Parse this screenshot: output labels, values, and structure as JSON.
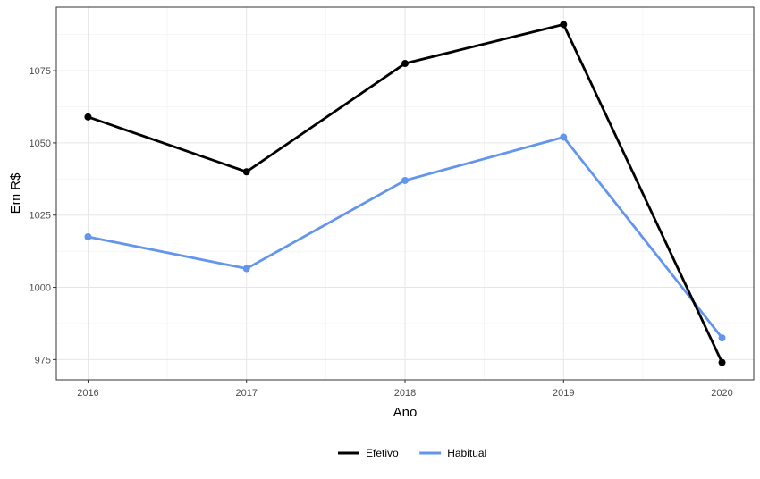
{
  "chart_data": {
    "type": "line",
    "title": "",
    "xlabel": "Ano",
    "ylabel": "Em R$",
    "x": [
      2016,
      2017,
      2018,
      2019,
      2020
    ],
    "x_ticks": [
      "2016",
      "2017",
      "2018",
      "2019",
      "2020"
    ],
    "y_ticks": [
      "975",
      "1000",
      "1025",
      "1050",
      "1075"
    ],
    "y_tick_values": [
      975,
      1000,
      1025,
      1050,
      1075
    ],
    "ylim": [
      968,
      1097
    ],
    "xlim": [
      2015.8,
      2020.2
    ],
    "grid": true,
    "legend_position": "bottom",
    "series": [
      {
        "name": "Efetivo",
        "color": "#000000",
        "values": [
          1059,
          1040,
          1077.5,
          1091,
          974
        ]
      },
      {
        "name": "Habitual",
        "color": "#6495ED",
        "values": [
          1017.5,
          1006.5,
          1037,
          1052,
          982.5
        ]
      }
    ]
  }
}
